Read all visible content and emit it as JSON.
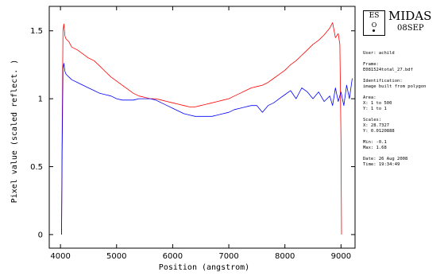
{
  "header": {
    "app_name": "MIDAS",
    "date": "08SEP",
    "logo_top": "ES",
    "logo_bottom": "O"
  },
  "info": {
    "user": "User: achild",
    "frame_label": "Frame:",
    "frame_value": "E081524total_27.bdf",
    "identification_label": "Identification:",
    "identification_value": "image built from polygon",
    "area_label": "Area:",
    "area_x": "X: 1 to 500",
    "area_y": "Y: 1 to 1",
    "scales_label": "Scales:",
    "scales_x": "X: 28.7327",
    "scales_y": "Y: 0.0120888",
    "min": "Min: -0.1",
    "max": "Max: 1.68",
    "date_line": "Date: 26 Aug 2008",
    "time_line": "Time: 19:34:49"
  },
  "colors": {
    "series_red": "#ff0000",
    "series_blue": "#0000ff",
    "axis": "#000000"
  },
  "chart_data": {
    "type": "line",
    "title": "",
    "xlabel": "Position (angstrom)",
    "ylabel": "Pixel value (scaled reflect. )",
    "xlim": [
      3800,
      9250
    ],
    "ylim": [
      -0.1,
      1.68
    ],
    "xticks": [
      4000,
      5000,
      6000,
      7000,
      8000,
      9000
    ],
    "yticks": [
      0,
      0.5,
      1,
      1.5
    ],
    "ytick_labels": [
      "0",
      "0.5",
      "1",
      "1.5"
    ],
    "grid": false,
    "legend": "none",
    "series": [
      {
        "color": "#ff0000",
        "x": [
          4020,
          4030,
          4045,
          4060,
          4080,
          4100,
          4150,
          4200,
          4300,
          4400,
          4500,
          4600,
          4700,
          4800,
          4900,
          5000,
          5100,
          5200,
          5300,
          5400,
          5500,
          5600,
          5700,
          5800,
          5900,
          6000,
          6100,
          6200,
          6300,
          6400,
          6500,
          6600,
          6700,
          6800,
          6900,
          7000,
          7100,
          7200,
          7300,
          7400,
          7500,
          7600,
          7700,
          7800,
          7900,
          8000,
          8100,
          8200,
          8300,
          8400,
          8500,
          8600,
          8700,
          8800,
          8850,
          8900,
          8950,
          8980,
          9000,
          9010
        ],
        "y": [
          0,
          0.72,
          1.5,
          1.55,
          1.46,
          1.44,
          1.42,
          1.38,
          1.36,
          1.33,
          1.3,
          1.28,
          1.24,
          1.2,
          1.16,
          1.13,
          1.1,
          1.07,
          1.04,
          1.02,
          1.01,
          1.0,
          1.0,
          0.99,
          0.98,
          0.97,
          0.96,
          0.95,
          0.94,
          0.94,
          0.95,
          0.96,
          0.97,
          0.98,
          0.99,
          1.0,
          1.02,
          1.04,
          1.06,
          1.08,
          1.09,
          1.1,
          1.12,
          1.15,
          1.18,
          1.21,
          1.25,
          1.28,
          1.32,
          1.36,
          1.4,
          1.43,
          1.47,
          1.52,
          1.56,
          1.45,
          1.48,
          1.4,
          0.7,
          0
        ]
      },
      {
        "color": "#0000ff",
        "x": [
          4020,
          4030,
          4045,
          4060,
          4080,
          4100,
          4150,
          4200,
          4300,
          4400,
          4500,
          4600,
          4700,
          4800,
          4900,
          5000,
          5100,
          5200,
          5300,
          5400,
          5500,
          5600,
          5700,
          5800,
          5900,
          6000,
          6100,
          6200,
          6300,
          6400,
          6500,
          6600,
          6700,
          6800,
          6900,
          7000,
          7100,
          7200,
          7300,
          7400,
          7500,
          7600,
          7700,
          7800,
          7900,
          8000,
          8100,
          8200,
          8300,
          8400,
          8500,
          8600,
          8700,
          8800,
          8850,
          8900,
          8950,
          9000,
          9050,
          9100,
          9150,
          9200
        ],
        "y": [
          0,
          0.6,
          1.22,
          1.26,
          1.2,
          1.18,
          1.16,
          1.14,
          1.12,
          1.1,
          1.08,
          1.06,
          1.04,
          1.03,
          1.02,
          1.0,
          0.99,
          0.99,
          0.99,
          1.0,
          1.0,
          1.0,
          0.99,
          0.97,
          0.95,
          0.93,
          0.91,
          0.89,
          0.88,
          0.87,
          0.87,
          0.87,
          0.87,
          0.88,
          0.89,
          0.9,
          0.92,
          0.93,
          0.94,
          0.95,
          0.95,
          0.9,
          0.95,
          0.97,
          1.0,
          1.03,
          1.06,
          1.0,
          1.08,
          1.05,
          1.0,
          1.05,
          0.98,
          1.02,
          0.95,
          1.08,
          0.98,
          1.05,
          0.95,
          1.1,
          1.0,
          1.15
        ]
      }
    ]
  }
}
